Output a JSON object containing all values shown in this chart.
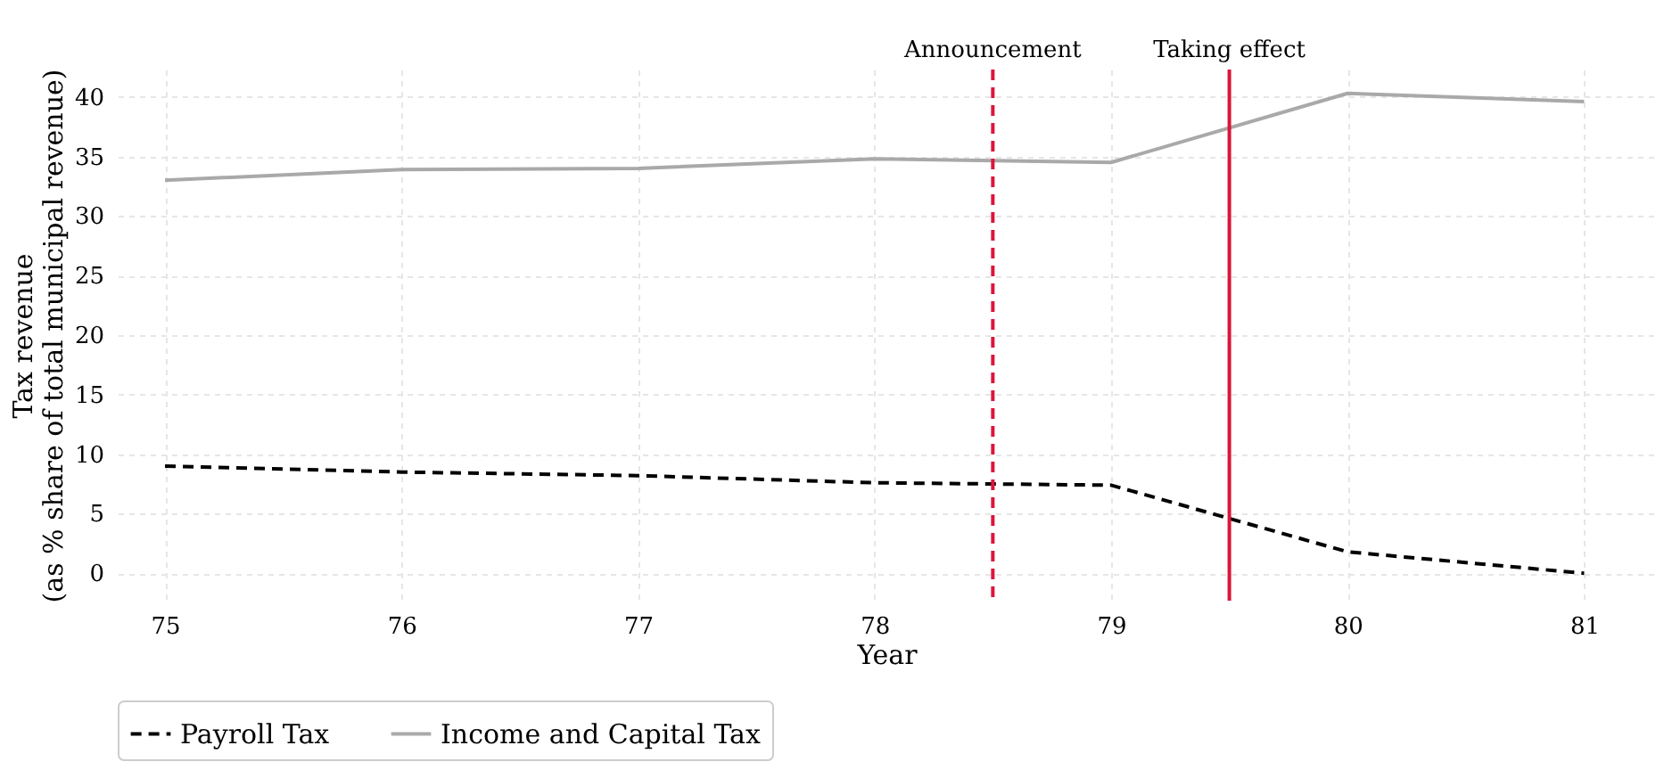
{
  "chart_data": {
    "type": "line",
    "xlabel": "Year",
    "ylabel": "Tax revenue\n(as % share of total municipal revenue)",
    "x": [
      75,
      76,
      77,
      78,
      79,
      80,
      81
    ],
    "series": [
      {
        "name": "Payroll Tax",
        "color": "#000000",
        "line_style": "dashed",
        "values": [
          9.0,
          8.5,
          8.2,
          7.6,
          7.4,
          1.8,
          0.0
        ]
      },
      {
        "name": "Income and Capital Tax",
        "color": "#a9a9a9",
        "line_style": "solid",
        "values": [
          33.0,
          33.9,
          34.0,
          34.8,
          34.5,
          40.3,
          39.6
        ]
      }
    ],
    "xlim": [
      74.8,
      81.3
    ],
    "xticks": [
      75,
      76,
      77,
      78,
      79,
      80,
      81
    ],
    "ylim": [
      -2.3,
      42.3
    ],
    "yticks": [
      0,
      5,
      10,
      15,
      20,
      25,
      30,
      35,
      40
    ],
    "ref_lines": [
      {
        "axis": "x",
        "value": 78.5,
        "label": "Announcement",
        "color": "#dc143c",
        "line_style": "dashed"
      },
      {
        "axis": "x",
        "value": 79.5,
        "label": "Taking effect",
        "color": "#dc143c",
        "line_style": "solid"
      }
    ],
    "grid": true,
    "legend": "bottom",
    "marker": "none"
  }
}
